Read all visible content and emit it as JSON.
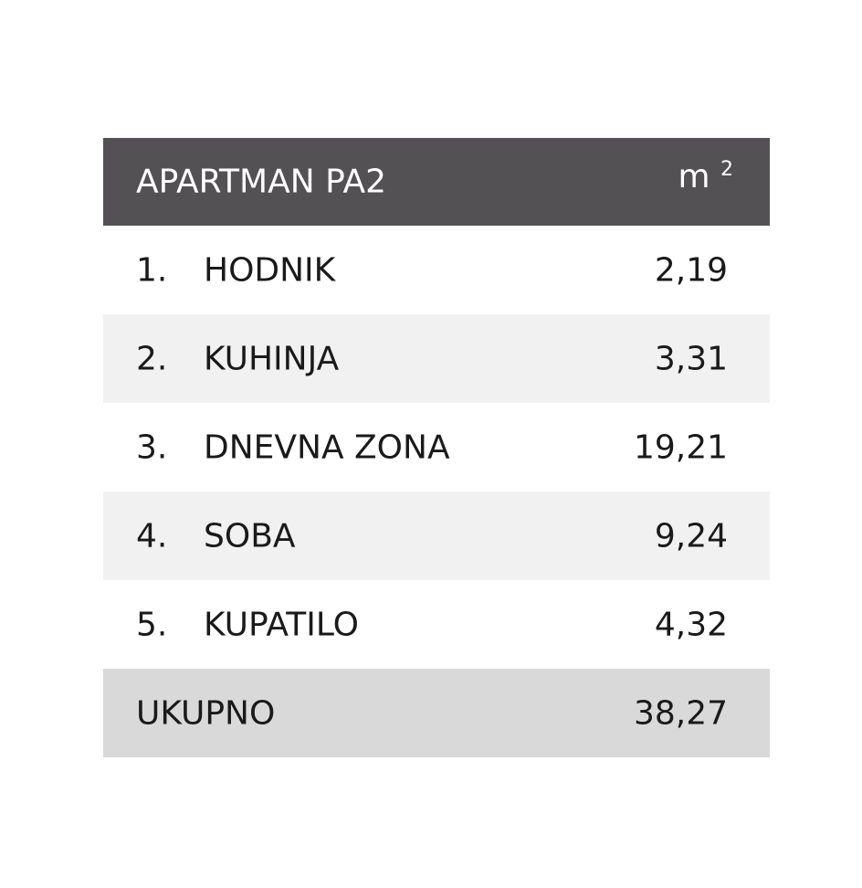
{
  "table": {
    "title": "APARTMAN PA2",
    "unit": "m",
    "unit_sup": "2",
    "rows": [
      [
        "1.",
        "HODNIK",
        "2,19"
      ],
      [
        "2.",
        "KUHINJA",
        "3,31"
      ],
      [
        "3.",
        "DNEVNA ZONA",
        "19,21"
      ],
      [
        "4.",
        "SOBA",
        "9,24"
      ],
      [
        "5.",
        "KUPATILO",
        "4,32"
      ]
    ],
    "total": {
      "label": "UKUPNO",
      "value": "38,27"
    }
  }
}
